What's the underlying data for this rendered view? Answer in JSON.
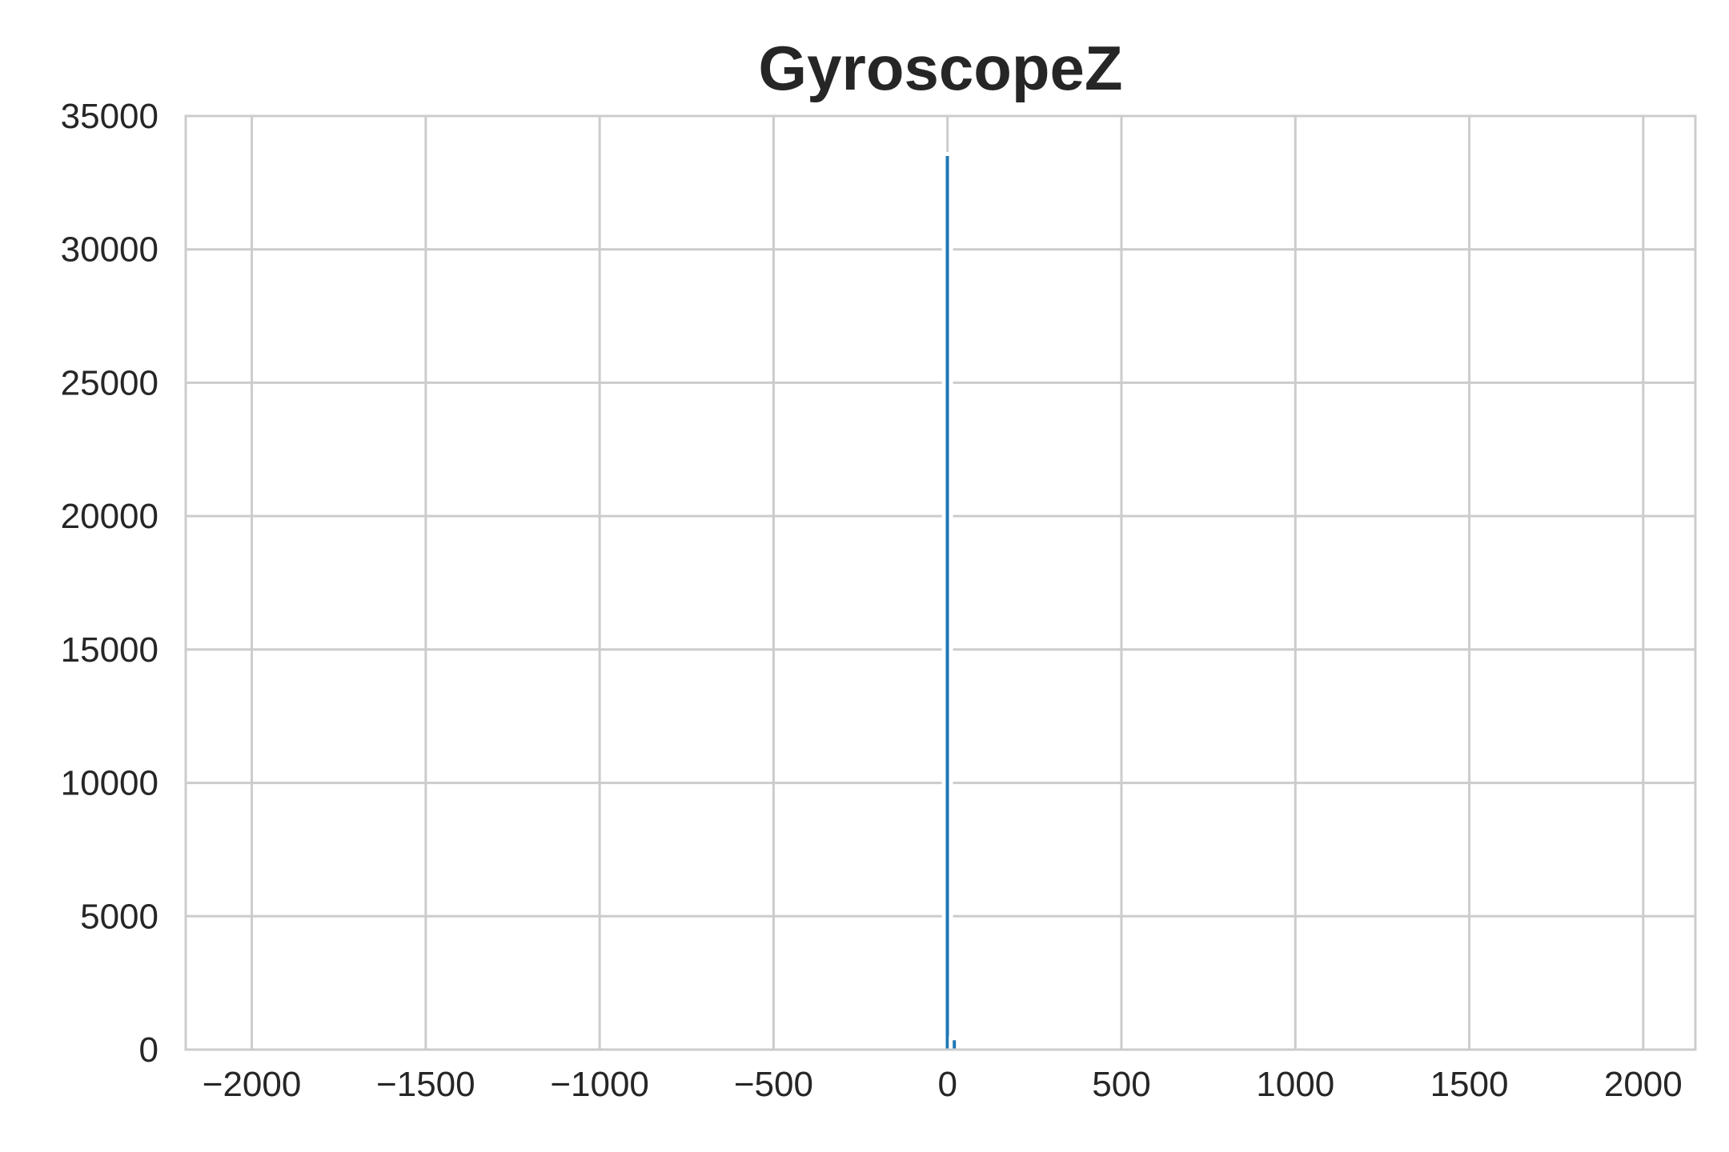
{
  "chart_data": {
    "type": "bar",
    "title": "GyroscopeZ",
    "xlabel": "",
    "ylabel": "",
    "xlim": [
      -2190,
      2150
    ],
    "ylim": [
      0,
      35000
    ],
    "x_ticks": [
      -2000,
      -1500,
      -1000,
      -500,
      0,
      500,
      1000,
      1500,
      2000
    ],
    "x_tick_labels": [
      "−2000",
      "−1500",
      "−1000",
      "−500",
      "0",
      "500",
      "1000",
      "1500",
      "2000"
    ],
    "y_ticks": [
      0,
      5000,
      10000,
      15000,
      20000,
      25000,
      30000,
      35000
    ],
    "y_tick_labels": [
      "0",
      "5000",
      "10000",
      "15000",
      "20000",
      "25000",
      "30000",
      "35000"
    ],
    "grid": true,
    "bin_width": 5,
    "bins": [
      {
        "x0": -5,
        "x1": 0,
        "value": 33500
      },
      {
        "x0": 15,
        "x1": 20,
        "value": 350
      }
    ],
    "colors": {
      "bar": "#1f77b4",
      "grid": "#cccccc",
      "text": "#262626",
      "background": "#ffffff"
    }
  }
}
